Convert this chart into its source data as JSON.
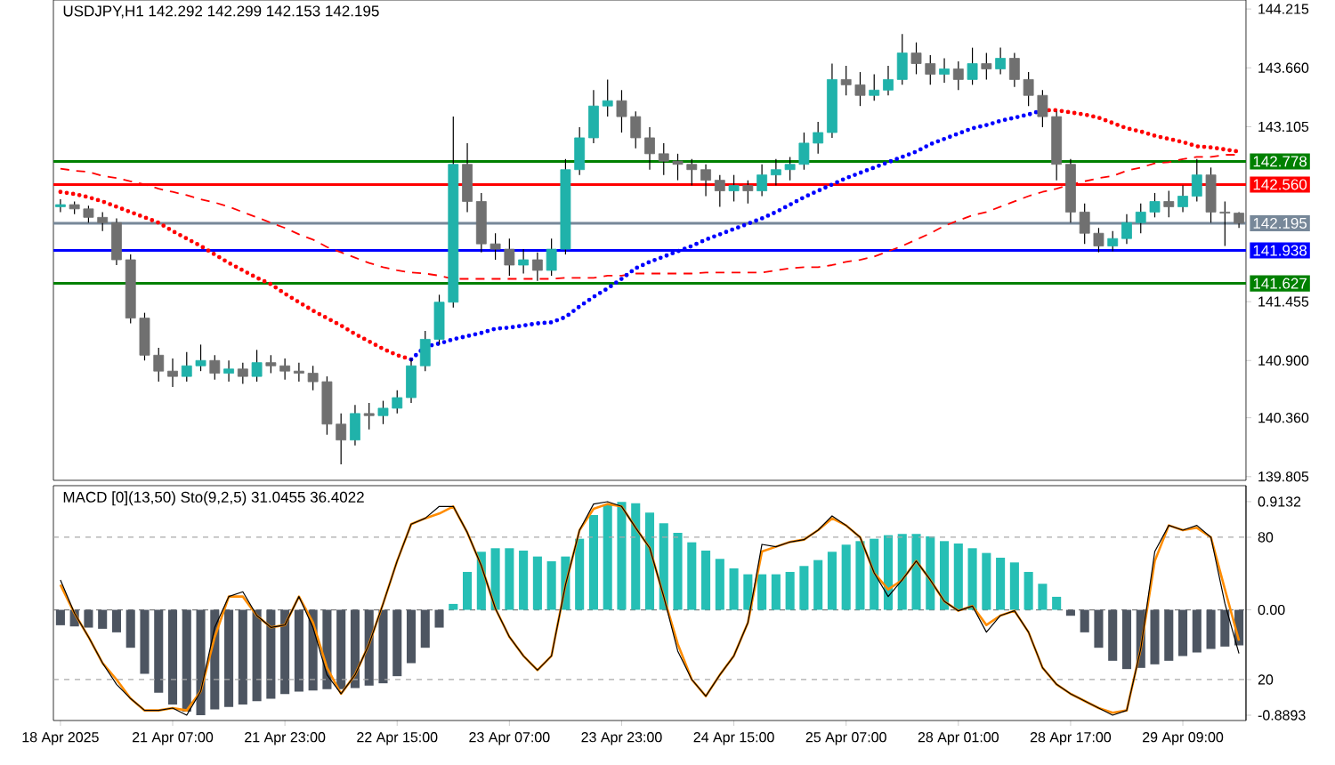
{
  "chart_data": [
    {
      "type": "candlestick",
      "title": "USDJPY,H1  142.292 142.299 142.153 142.195",
      "tick_labels": "y",
      "categories": [
        null,
        null,
        null,
        null,
        null,
        null,
        null,
        null,
        null,
        null,
        null,
        null,
        null,
        null,
        null,
        null,
        null,
        null,
        null,
        null,
        null,
        null,
        null,
        null,
        null,
        null,
        null,
        null,
        null,
        null,
        null,
        null,
        null,
        null,
        null,
        null,
        null,
        null,
        null,
        null,
        null,
        null,
        null,
        null,
        null,
        null,
        null,
        null,
        null,
        null,
        null,
        null,
        null,
        null,
        null,
        null,
        null,
        null,
        null,
        null,
        null,
        null,
        null,
        null,
        null,
        null,
        null,
        null,
        null,
        null,
        null,
        null,
        null,
        null,
        null,
        null,
        null,
        null,
        null,
        null,
        null,
        null,
        null,
        null,
        null
      ],
      "ohlc": [
        [
          142.35,
          142.42,
          142.3,
          142.37
        ],
        [
          142.37,
          142.4,
          142.28,
          142.33
        ],
        [
          142.33,
          142.36,
          142.2,
          142.25
        ],
        [
          142.25,
          142.3,
          142.12,
          142.2
        ],
        [
          142.2,
          142.24,
          141.8,
          141.85
        ],
        [
          141.85,
          141.9,
          141.25,
          141.3
        ],
        [
          141.3,
          141.35,
          140.9,
          140.95
        ],
        [
          140.95,
          141.02,
          140.7,
          140.8
        ],
        [
          140.8,
          140.92,
          140.65,
          140.75
        ],
        [
          140.75,
          140.98,
          140.7,
          140.85
        ],
        [
          140.85,
          141.05,
          140.8,
          140.9
        ],
        [
          140.9,
          140.95,
          140.72,
          140.78
        ],
        [
          140.78,
          140.9,
          140.7,
          140.82
        ],
        [
          140.82,
          140.88,
          140.68,
          140.75
        ],
        [
          140.75,
          141.0,
          140.7,
          140.88
        ],
        [
          140.88,
          140.95,
          140.78,
          140.85
        ],
        [
          140.85,
          140.92,
          140.72,
          140.8
        ],
        [
          140.8,
          140.88,
          140.7,
          140.78
        ],
        [
          140.78,
          140.85,
          140.62,
          140.7
        ],
        [
          140.7,
          140.75,
          140.2,
          140.3
        ],
        [
          140.3,
          140.4,
          139.92,
          140.15
        ],
        [
          140.15,
          140.48,
          140.1,
          140.4
        ],
        [
          140.4,
          140.5,
          140.25,
          140.38
        ],
        [
          140.38,
          140.52,
          140.3,
          140.45
        ],
        [
          140.45,
          140.62,
          140.4,
          140.55
        ],
        [
          140.55,
          140.92,
          140.5,
          140.85
        ],
        [
          140.85,
          141.18,
          140.8,
          141.1
        ],
        [
          141.1,
          141.52,
          141.05,
          141.45
        ],
        [
          141.45,
          143.2,
          141.4,
          142.75
        ],
        [
          142.75,
          142.95,
          142.3,
          142.4
        ],
        [
          142.4,
          142.48,
          141.92,
          142.0
        ],
        [
          142.0,
          142.1,
          141.85,
          141.95
        ],
        [
          141.95,
          142.05,
          141.7,
          141.8
        ],
        [
          141.8,
          141.95,
          141.72,
          141.85
        ],
        [
          141.85,
          141.92,
          141.65,
          141.75
        ],
        [
          141.75,
          142.05,
          141.7,
          141.95
        ],
        [
          141.95,
          142.8,
          141.9,
          142.7
        ],
        [
          142.7,
          143.1,
          142.65,
          143.0
        ],
        [
          143.0,
          143.45,
          142.95,
          143.3
        ],
        [
          143.3,
          143.55,
          143.2,
          143.35
        ],
        [
          143.35,
          143.45,
          143.05,
          143.2
        ],
        [
          143.2,
          143.25,
          142.9,
          143.0
        ],
        [
          143.0,
          143.1,
          142.7,
          142.85
        ],
        [
          142.85,
          142.95,
          142.65,
          142.78
        ],
        [
          142.78,
          142.85,
          142.6,
          142.75
        ],
        [
          142.75,
          142.8,
          142.55,
          142.7
        ],
        [
          142.7,
          142.75,
          142.45,
          142.6
        ],
        [
          142.6,
          142.65,
          142.35,
          142.5
        ],
        [
          142.5,
          142.65,
          142.4,
          142.55
        ],
        [
          142.55,
          142.6,
          142.38,
          142.5
        ],
        [
          142.5,
          142.75,
          142.45,
          142.65
        ],
        [
          142.65,
          142.8,
          142.55,
          142.7
        ],
        [
          142.7,
          142.82,
          142.6,
          142.75
        ],
        [
          142.75,
          143.05,
          142.7,
          142.95
        ],
        [
          142.95,
          143.15,
          142.85,
          143.05
        ],
        [
          143.05,
          143.7,
          143.0,
          143.55
        ],
        [
          143.55,
          143.68,
          143.4,
          143.5
        ],
        [
          143.5,
          143.62,
          143.3,
          143.4
        ],
        [
          143.4,
          143.6,
          143.35,
          143.45
        ],
        [
          143.45,
          143.68,
          143.4,
          143.55
        ],
        [
          143.55,
          143.98,
          143.5,
          143.8
        ],
        [
          143.8,
          143.9,
          143.6,
          143.7
        ],
        [
          143.7,
          143.78,
          143.5,
          143.6
        ],
        [
          143.6,
          143.75,
          143.52,
          143.65
        ],
        [
          143.65,
          143.72,
          143.45,
          143.55
        ],
        [
          143.55,
          143.85,
          143.5,
          143.7
        ],
        [
          143.7,
          143.8,
          143.55,
          143.65
        ],
        [
          143.65,
          143.85,
          143.6,
          143.75
        ],
        [
          143.75,
          143.8,
          143.48,
          143.55
        ],
        [
          143.55,
          143.62,
          143.3,
          143.4
        ],
        [
          143.4,
          143.45,
          143.1,
          143.2
        ],
        [
          143.2,
          143.25,
          142.6,
          142.75
        ],
        [
          142.75,
          142.8,
          142.2,
          142.3
        ],
        [
          142.3,
          142.38,
          142.0,
          142.1
        ],
        [
          142.1,
          142.15,
          141.92,
          141.98
        ],
        [
          141.98,
          142.12,
          141.93,
          142.05
        ],
        [
          142.05,
          142.28,
          142.0,
          142.2
        ],
        [
          142.2,
          142.38,
          142.1,
          142.3
        ],
        [
          142.3,
          142.48,
          142.25,
          142.4
        ],
        [
          142.4,
          142.5,
          142.25,
          142.35
        ],
        [
          142.35,
          142.55,
          142.3,
          142.45
        ],
        [
          142.45,
          142.8,
          142.4,
          142.65
        ],
        [
          142.65,
          142.72,
          142.2,
          142.3
        ],
        [
          142.3,
          142.4,
          141.98,
          142.29
        ],
        [
          142.29,
          142.3,
          142.15,
          142.195
        ]
      ],
      "colors": [
        "#20b2aa",
        "#707070",
        "#707070",
        "#707070",
        "#707070",
        "#707070",
        "#707070",
        "#707070",
        "#707070",
        "#20b2aa",
        "#20b2aa",
        "#707070",
        "#20b2aa",
        "#707070",
        "#20b2aa",
        "#707070",
        "#707070",
        "#707070",
        "#707070",
        "#707070",
        "#707070",
        "#20b2aa",
        "#707070",
        "#20b2aa",
        "#20b2aa",
        "#20b2aa",
        "#20b2aa",
        "#20b2aa",
        "#20b2aa",
        "#707070",
        "#707070",
        "#707070",
        "#707070",
        "#20b2aa",
        "#707070",
        "#20b2aa",
        "#20b2aa",
        "#20b2aa",
        "#20b2aa",
        "#20b2aa",
        "#707070",
        "#707070",
        "#707070",
        "#707070",
        "#707070",
        "#707070",
        "#707070",
        "#707070",
        "#20b2aa",
        "#707070",
        "#20b2aa",
        "#20b2aa",
        "#20b2aa",
        "#20b2aa",
        "#20b2aa",
        "#20b2aa",
        "#707070",
        "#707070",
        "#20b2aa",
        "#20b2aa",
        "#20b2aa",
        "#707070",
        "#707070",
        "#20b2aa",
        "#707070",
        "#20b2aa",
        "#707070",
        "#20b2aa",
        "#707070",
        "#707070",
        "#707070",
        "#707070",
        "#707070",
        "#707070",
        "#707070",
        "#20b2aa",
        "#20b2aa",
        "#20b2aa",
        "#20b2aa",
        "#707070",
        "#20b2aa",
        "#20b2aa",
        "#707070",
        "#707070",
        "#707070"
      ],
      "series": [
        {
          "type": "line",
          "color": "#ff0000",
          "line_style": "dashed",
          "values": [
            142.71,
            142.69,
            142.68,
            142.64,
            142.62,
            142.59,
            142.56,
            142.52,
            142.49,
            142.46,
            142.42,
            142.39,
            142.35,
            142.3,
            142.25,
            142.2,
            142.15,
            142.09,
            142.04,
            141.97,
            141.92,
            141.87,
            141.82,
            141.78,
            141.75,
            141.73,
            141.72,
            141.7,
            141.67,
            141.67,
            141.67,
            141.67,
            141.67,
            141.67,
            141.67,
            141.67,
            141.68,
            141.68,
            141.68,
            141.7,
            141.7,
            141.72,
            141.72,
            141.72,
            141.72,
            141.72,
            141.73,
            141.73,
            141.73,
            141.73,
            141.73,
            141.75,
            141.77,
            141.78,
            141.78,
            141.8,
            141.83,
            141.85,
            141.88,
            141.93,
            141.98,
            142.04,
            142.1,
            142.17,
            142.22,
            142.27,
            142.3,
            142.35,
            142.4,
            142.45,
            142.49,
            142.52,
            142.56,
            142.59,
            142.62,
            142.64,
            142.69,
            142.72,
            142.76,
            142.77,
            142.8,
            142.82,
            142.82,
            142.84,
            142.84
          ]
        },
        {
          "type": "line",
          "color": "#ff0000",
          "line_style": "dotted",
          "values": [
            142.49,
            142.47,
            142.44,
            142.4,
            142.35,
            142.3,
            142.25,
            142.2,
            142.12,
            142.05,
            141.98,
            141.9,
            141.82,
            141.75,
            141.68,
            141.62,
            141.53,
            141.45,
            141.37,
            141.3,
            141.23,
            141.15,
            141.08,
            141.01,
            140.95,
            140.91,
            null,
            null,
            null,
            null,
            null,
            null,
            null,
            null,
            null,
            null,
            null,
            null,
            null,
            null,
            null,
            null,
            null,
            null,
            null,
            null,
            null,
            null,
            null,
            null,
            null,
            null,
            null,
            null,
            null,
            null,
            null,
            null,
            null,
            null,
            null,
            null,
            null,
            null,
            null,
            null,
            null,
            null,
            null,
            null,
            143.26,
            143.26,
            143.24,
            143.22,
            143.19,
            143.14,
            143.09,
            143.06,
            143.02,
            142.99,
            142.96,
            142.92,
            142.91,
            142.89,
            142.87
          ]
        },
        {
          "type": "line",
          "color": "#0000ff",
          "line_style": "dotted",
          "values": [
            null,
            null,
            null,
            null,
            null,
            null,
            null,
            null,
            null,
            null,
            null,
            null,
            null,
            null,
            null,
            null,
            null,
            null,
            null,
            null,
            null,
            null,
            null,
            null,
            null,
            140.91,
            141.03,
            141.06,
            141.1,
            141.13,
            141.16,
            141.2,
            141.21,
            141.23,
            141.25,
            141.26,
            141.31,
            141.41,
            141.5,
            141.58,
            141.67,
            141.77,
            141.83,
            141.88,
            141.93,
            141.98,
            142.04,
            142.09,
            142.14,
            142.19,
            142.24,
            142.3,
            142.37,
            142.44,
            142.5,
            142.56,
            142.62,
            142.67,
            142.72,
            142.77,
            142.82,
            142.87,
            142.94,
            142.99,
            143.04,
            143.09,
            143.12,
            143.16,
            143.19,
            143.22,
            143.26,
            null,
            null,
            null,
            null,
            null,
            null,
            null,
            null,
            null,
            null,
            null,
            null,
            null,
            null
          ]
        }
      ],
      "ylim": [
        139.77,
        144.3
      ],
      "yticks": [
        144.215,
        {
          "value": 143.66,
          "label": "143.660"
        },
        143.105,
        141.455,
        {
          "value": 140.9,
          "label": "140.900"
        },
        {
          "value": 140.36,
          "label": "140.360"
        },
        139.805
      ],
      "ref_lines": [
        {
          "axis": "y",
          "value": 142.778,
          "label": "142.778",
          "color": "#008000"
        },
        {
          "axis": "y",
          "value": 142.56,
          "label": "142.560",
          "color": "#ff0000"
        },
        {
          "axis": "y",
          "value": 142.195,
          "label": "142.195",
          "color": "#778899"
        },
        {
          "axis": "y",
          "value": 141.938,
          "label": "141.938",
          "color": "#0000ff"
        },
        {
          "axis": "y",
          "value": 141.627,
          "label": "141.627",
          "color": "#008000"
        }
      ]
    },
    {
      "type": "bar",
      "title": "MACD [0](13,50)  Sto(9,2,5) 31.0455 36.4022",
      "categories": [
        "18 Apr 2025",
        null,
        null,
        null,
        null,
        null,
        null,
        null,
        "21 Apr 07:00",
        null,
        null,
        null,
        null,
        null,
        null,
        null,
        "21 Apr 23:00",
        null,
        null,
        null,
        null,
        null,
        null,
        null,
        "22 Apr 15:00",
        null,
        null,
        null,
        null,
        null,
        null,
        null,
        "23 Apr 07:00",
        null,
        null,
        null,
        null,
        null,
        null,
        null,
        "23 Apr 23:00",
        null,
        null,
        null,
        null,
        null,
        null,
        null,
        "24 Apr 15:00",
        null,
        null,
        null,
        null,
        null,
        null,
        null,
        "25 Apr 07:00",
        null,
        null,
        null,
        null,
        null,
        null,
        null,
        "28 Apr 01:00",
        null,
        null,
        null,
        null,
        null,
        null,
        null,
        "28 Apr 17:00",
        null,
        null,
        null,
        null,
        null,
        null,
        null,
        "29 Apr 09:00",
        null,
        null,
        null,
        null
      ],
      "series": [
        {
          "type": "bar",
          "values": [
            -0.13,
            -0.14,
            -0.15,
            -0.16,
            -0.19,
            -0.32,
            -0.54,
            -0.7,
            -0.8,
            -0.86,
            -0.89,
            -0.84,
            -0.82,
            -0.8,
            -0.77,
            -0.75,
            -0.71,
            -0.69,
            -0.68,
            -0.67,
            -0.67,
            -0.66,
            -0.64,
            -0.62,
            -0.56,
            -0.45,
            -0.32,
            -0.15,
            0.05,
            0.32,
            0.49,
            0.52,
            0.52,
            0.5,
            0.45,
            0.41,
            0.45,
            0.6,
            0.8,
            0.89,
            0.91,
            0.9,
            0.82,
            0.73,
            0.65,
            0.57,
            0.5,
            0.43,
            0.35,
            0.3,
            0.3,
            0.3,
            0.32,
            0.37,
            0.42,
            0.49,
            0.55,
            0.58,
            0.6,
            0.63,
            0.64,
            0.64,
            0.62,
            0.58,
            0.56,
            0.52,
            0.48,
            0.44,
            0.4,
            0.32,
            0.22,
            0.11,
            -0.05,
            -0.19,
            -0.32,
            -0.43,
            -0.5,
            -0.49,
            -0.46,
            -0.43,
            -0.39,
            -0.36,
            -0.33,
            -0.31,
            -0.3
          ],
          "colors": [
            "#4d5561",
            "#4d5561",
            "#4d5561",
            "#4d5561",
            "#4d5561",
            "#4d5561",
            "#4d5561",
            "#4d5561",
            "#4d5561",
            "#4d5561",
            "#4d5561",
            "#4d5561",
            "#4d5561",
            "#4d5561",
            "#4d5561",
            "#4d5561",
            "#4d5561",
            "#4d5561",
            "#4d5561",
            "#4d5561",
            "#4d5561",
            "#4d5561",
            "#4d5561",
            "#4d5561",
            "#4d5561",
            "#4d5561",
            "#4d5561",
            "#4d5561",
            "#26bfb5",
            "#26bfb5",
            "#26bfb5",
            "#26bfb5",
            "#26bfb5",
            "#26bfb5",
            "#26bfb5",
            "#26bfb5",
            "#26bfb5",
            "#26bfb5",
            "#26bfb5",
            "#26bfb5",
            "#26bfb5",
            "#26bfb5",
            "#26bfb5",
            "#26bfb5",
            "#26bfb5",
            "#26bfb5",
            "#26bfb5",
            "#26bfb5",
            "#26bfb5",
            "#26bfb5",
            "#26bfb5",
            "#26bfb5",
            "#26bfb5",
            "#26bfb5",
            "#26bfb5",
            "#26bfb5",
            "#26bfb5",
            "#26bfb5",
            "#26bfb5",
            "#26bfb5",
            "#26bfb5",
            "#26bfb5",
            "#26bfb5",
            "#26bfb5",
            "#26bfb5",
            "#26bfb5",
            "#26bfb5",
            "#26bfb5",
            "#26bfb5",
            "#26bfb5",
            "#26bfb5",
            "#26bfb5",
            "#4d5561",
            "#4d5561",
            "#4d5561",
            "#4d5561",
            "#4d5561",
            "#4d5561",
            "#4d5561",
            "#4d5561",
            "#4d5561",
            "#4d5561",
            "#4d5561",
            "#4d5561",
            "#4d5561"
          ]
        },
        {
          "type": "line",
          "axis": "y2",
          "color": "#ff8c00",
          "line_style": "solid",
          "values": [
            60,
            48,
            38,
            27,
            20,
            12,
            7,
            7,
            8,
            7,
            15,
            38,
            55,
            55,
            47,
            42,
            43,
            55,
            44,
            25,
            14,
            22,
            35,
            52,
            70,
            85.5,
            88,
            90,
            93,
            82,
            68,
            50,
            38,
            30,
            24,
            30,
            60,
            83,
            92,
            94,
            93,
            84,
            75.5,
            55,
            35,
            20,
            13,
            22,
            30,
            44,
            74,
            76,
            78,
            79,
            83,
            88,
            85,
            80,
            65,
            58,
            62,
            70,
            62,
            53,
            49,
            51,
            43,
            47,
            49,
            40,
            25,
            18,
            14,
            11,
            8,
            6,
            7,
            33,
            70,
            85,
            83,
            84,
            80,
            58,
            36.4
          ]
        },
        {
          "type": "line",
          "axis": "y2",
          "color": "#000000",
          "line_style": "solid",
          "values": [
            62,
            48,
            38,
            27,
            18,
            12,
            7,
            7,
            8,
            5,
            15,
            42,
            55,
            57,
            47,
            42,
            43,
            55,
            42,
            22,
            14,
            22,
            35,
            52,
            70,
            85.5,
            88,
            93,
            93,
            82,
            68,
            50,
            38,
            30,
            24,
            30,
            60,
            83,
            94,
            95,
            93,
            84,
            75.5,
            55,
            32,
            20,
            13,
            22,
            30,
            44,
            77,
            76,
            78,
            79,
            83,
            89,
            85,
            80,
            65,
            55,
            62,
            70,
            62,
            53,
            49,
            51,
            40,
            47,
            49,
            40,
            25,
            18,
            14,
            11,
            8,
            5,
            7,
            33,
            74,
            85,
            83,
            85,
            80,
            52,
            31
          ]
        }
      ],
      "ylim": [
        -0.934,
        1.048
      ],
      "yticks": [
        0.9132,
        {
          "value": 0,
          "label": "0.00"
        },
        -0.8893
      ],
      "y2lim": [
        2.75,
        101.75
      ],
      "y2ticks": [
        80,
        20
      ],
      "ref_lines": [
        {
          "axis": "y2",
          "value": 80,
          "color": "#a9a9a9",
          "line_style": "dashed"
        },
        {
          "axis": "y",
          "value": 0,
          "color": "#808080",
          "line_style": "dashed"
        },
        {
          "axis": "y2",
          "value": 20,
          "color": "#a9a9a9",
          "line_style": "dashed"
        }
      ]
    }
  ]
}
